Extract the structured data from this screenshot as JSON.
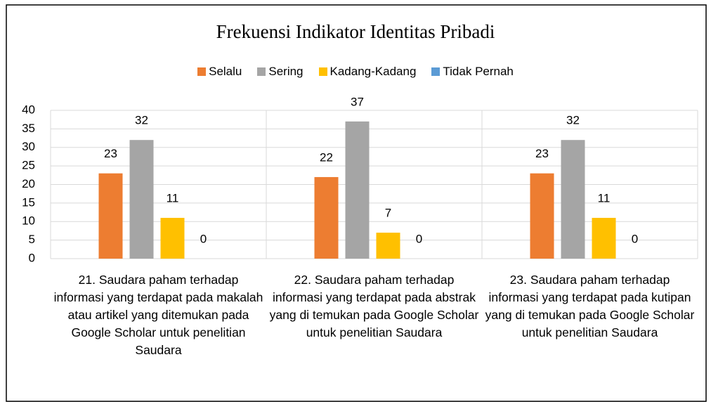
{
  "chart_data": {
    "type": "bar",
    "title": "Frekuensi Indikator Identitas Pribadi",
    "categories": [
      "21. Saudara paham terhadap informasi yang terdapat pada makalah atau artikel yang ditemukan pada Google Scholar untuk penelitian Saudara",
      "22. Saudara paham terhadap informasi yang terdapat pada abstrak yang di temukan pada Google Scholar untuk penelitian Saudara",
      "23. Saudara paham terhadap informasi yang terdapat pada kutipan yang di temukan pada Google Scholar untuk penelitian Saudara"
    ],
    "series": [
      {
        "name": "Selalu",
        "color": "#ed7d31",
        "values": [
          23,
          22,
          23
        ]
      },
      {
        "name": "Sering",
        "color": "#a5a5a5",
        "values": [
          32,
          37,
          32
        ]
      },
      {
        "name": "Kadang-Kadang",
        "color": "#ffc000",
        "values": [
          11,
          7,
          11
        ]
      },
      {
        "name": "Tidak Pernah",
        "color": "#5b9bd5",
        "values": [
          0,
          0,
          0
        ]
      }
    ],
    "ylim": [
      0,
      40
    ],
    "yticks": [
      0,
      5,
      10,
      15,
      20,
      25,
      30,
      35,
      40
    ],
    "grid": true,
    "legend": "top"
  }
}
